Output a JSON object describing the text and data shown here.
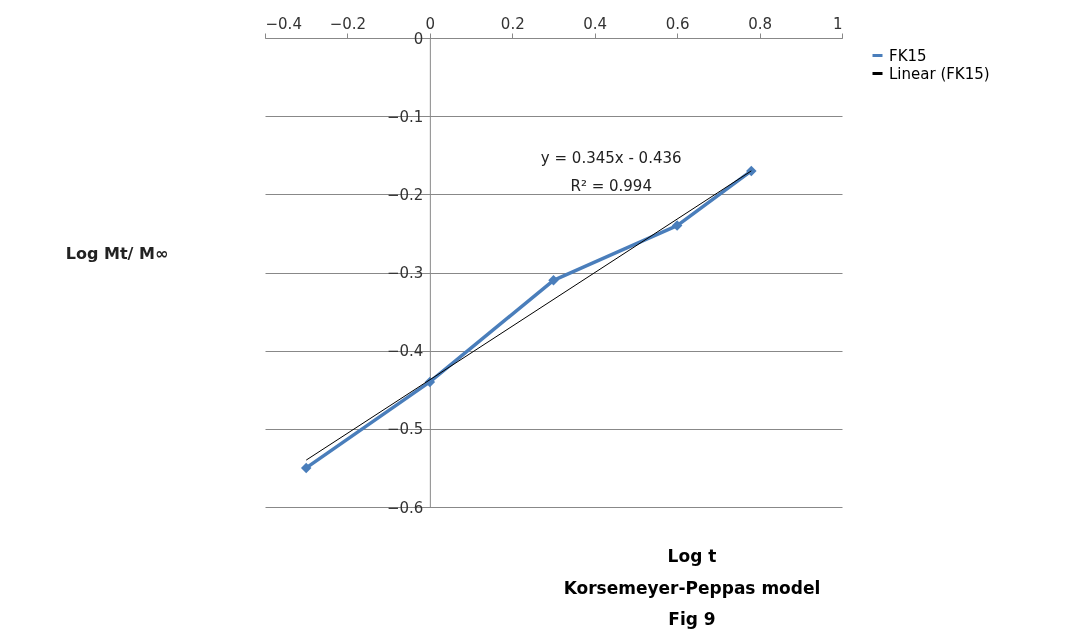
{
  "chart_data": {
    "type": "line",
    "title": "Korsemeyer-Peppas model",
    "subtitle": "Fig 9",
    "xlabel": "Log t",
    "series": [
      {
        "name": "FK15",
        "color": "#4a7ebb",
        "marker": "diamond",
        "x": [
          -0.3,
          0,
          0.3,
          0.6,
          0.78
        ],
        "values": [
          -0.55,
          -0.44,
          -0.31,
          -0.24,
          -0.17
        ]
      },
      {
        "name": "Linear (FK15)",
        "color": "#000000",
        "marker": "none",
        "x": [
          -0.3,
          0.78
        ],
        "values": [
          -0.54,
          -0.17
        ]
      }
    ],
    "annotations": [
      "y = 0.345x - 0.436",
      "R² = 0.994",
      "Log Mt/ M∞"
    ],
    "xlim": [
      -0.4,
      1
    ],
    "xticks": [
      -0.4,
      -0.2,
      0,
      0.2,
      0.4,
      0.6,
      0.8,
      1
    ],
    "ylim": [
      -0.6,
      0
    ],
    "yticks": [
      -0.6,
      -0.5,
      -0.4,
      -0.3,
      -0.2,
      -0.1,
      0
    ],
    "grid": "y",
    "legend": "right"
  }
}
